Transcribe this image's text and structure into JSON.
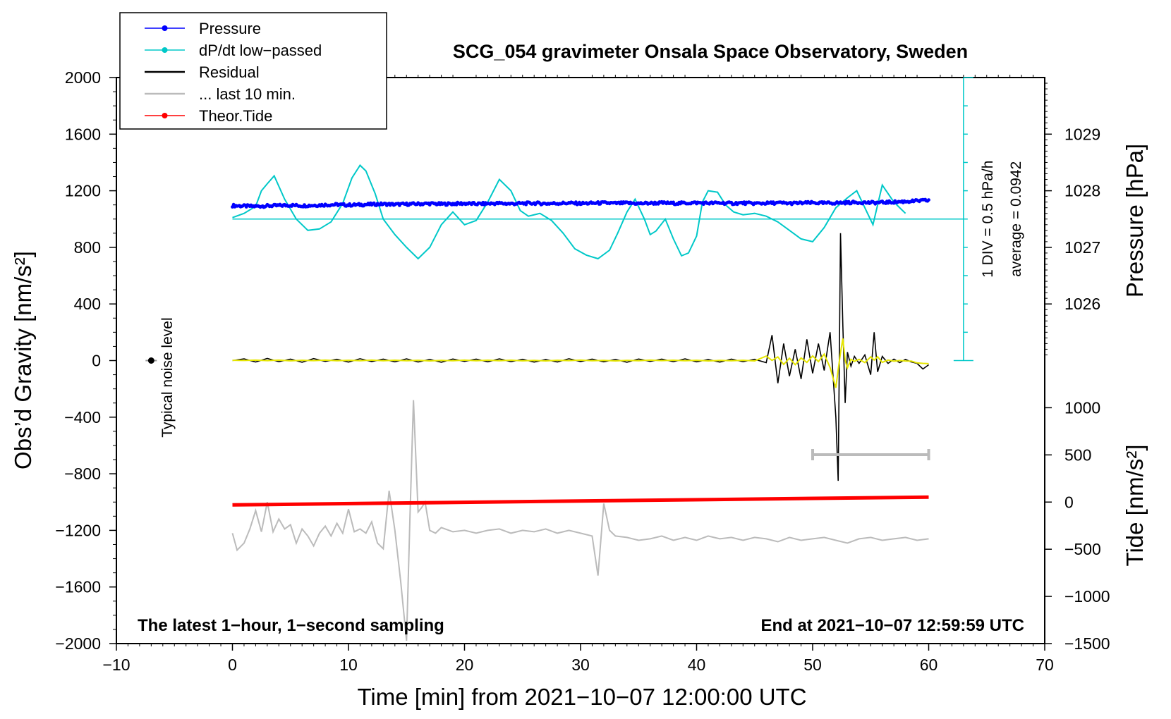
{
  "chart_data": {
    "type": "line",
    "title": "SCG_054 gravimeter Onsala Space Observatory, Sweden",
    "xlabel": "Time [min] from 2021−10−07 12:00:00 UTC",
    "ylabel_left": "Obs’d Gravity [nm/s²]",
    "ylabel_right_top": "Pressure [hPa]",
    "ylabel_right_bottom": "Tide [nm/s²]",
    "xlim": [
      -10,
      70
    ],
    "ylim": [
      -2000,
      2000
    ],
    "x_ticks": [
      {
        "v": -10,
        "label": "−10"
      },
      {
        "v": 0,
        "label": "0"
      },
      {
        "v": 10,
        "label": "10"
      },
      {
        "v": 20,
        "label": "20"
      },
      {
        "v": 30,
        "label": "30"
      },
      {
        "v": 40,
        "label": "40"
      },
      {
        "v": 50,
        "label": "50"
      },
      {
        "v": 60,
        "label": "60"
      },
      {
        "v": 70,
        "label": "70"
      }
    ],
    "y_ticks": [
      {
        "v": 2000,
        "label": "2000"
      },
      {
        "v": 1600,
        "label": "1600"
      },
      {
        "v": 1200,
        "label": "1200"
      },
      {
        "v": 800,
        "label": "800"
      },
      {
        "v": 400,
        "label": "400"
      },
      {
        "v": 0,
        "label": "0"
      },
      {
        "v": -400,
        "label": "−400"
      },
      {
        "v": -800,
        "label": "−800"
      },
      {
        "v": -1200,
        "label": "−1200"
      },
      {
        "v": -1600,
        "label": "−1600"
      },
      {
        "v": -2000,
        "label": "−2000"
      }
    ],
    "pressure_axis": {
      "hpa_per_gravity": 0.0025,
      "hpa_at_gravity_zero": 1025.0,
      "ticks": [
        {
          "v": 1029,
          "label": "1029"
        },
        {
          "v": 1028,
          "label": "1028"
        },
        {
          "v": 1027,
          "label": "1027"
        },
        {
          "v": 1026,
          "label": "1026"
        }
      ]
    },
    "tide_axis": {
      "tide_per_gravity": 1.5,
      "gravity_at_tide_zero": -1000,
      "ticks": [
        {
          "v": 1000,
          "label": "1000"
        },
        {
          "v": 500,
          "label": "500"
        },
        {
          "v": 0,
          "label": "0"
        },
        {
          "v": -500,
          "label": "−500"
        },
        {
          "v": -1000,
          "label": "−1000"
        },
        {
          "v": -1500,
          "label": "−1500"
        }
      ]
    },
    "legend": [
      {
        "label": "Pressure",
        "color": "#0000ff",
        "marker": true
      },
      {
        "label": "dP/dt low−passed",
        "color": "#00c8c8",
        "marker": true
      },
      {
        "label": "Residual",
        "color": "#000000",
        "marker": false
      },
      {
        "label": "... last 10 min.",
        "color": "#bbbbbb",
        "marker": false
      },
      {
        "label": "Theor.Tide",
        "color": "#ff0000",
        "marker": true
      }
    ],
    "dpdt_scale": {
      "label": "1 DIV = 0.5 hPa/h",
      "average_label": "average = 0.0942",
      "x_minutes": 63,
      "y_range": [
        0,
        2000
      ],
      "baseline_gravity": 1000,
      "divisions": 10
    },
    "noise_label": "Typical noise level",
    "noise_marker": {
      "x": -7,
      "y": 0,
      "err": 15
    },
    "bottom_left_note": "The latest 1−hour, 1−second sampling",
    "bottom_right_note": "End at 2021−10−07 12:59:59 UTC",
    "gray_bar": {
      "x_start": 50,
      "x_end": 60,
      "y": -665
    },
    "colors": {
      "pressure": "#0000ff",
      "dpdt": "#00c8c8",
      "residual": "#000000",
      "residual_smooth": "#e6e600",
      "last10": "#bbbbbb",
      "tide": "#ff0000"
    },
    "series": [
      {
        "name": "Pressure",
        "units": "gravity-scale",
        "x": [
          0,
          1,
          2,
          3,
          4,
          5,
          6,
          7,
          8,
          9,
          10,
          11,
          12,
          13,
          14,
          15,
          16,
          17,
          18,
          19,
          20,
          21,
          22,
          23,
          24,
          25,
          26,
          27,
          28,
          29,
          30,
          31,
          32,
          33,
          34,
          35,
          36,
          37,
          38,
          39,
          40,
          41,
          42,
          43,
          44,
          45,
          46,
          47,
          48,
          49,
          50,
          51,
          52,
          53,
          54,
          55,
          56,
          57,
          58,
          59,
          60
        ],
        "y": [
          1095,
          1092,
          1090,
          1093,
          1095,
          1098,
          1094,
          1097,
          1100,
          1102,
          1099,
          1101,
          1104,
          1106,
          1103,
          1105,
          1107,
          1109,
          1106,
          1108,
          1110,
          1107,
          1109,
          1111,
          1108,
          1110,
          1112,
          1109,
          1111,
          1113,
          1110,
          1112,
          1114,
          1111,
          1113,
          1110,
          1112,
          1114,
          1111,
          1113,
          1115,
          1112,
          1114,
          1111,
          1113,
          1110,
          1112,
          1114,
          1111,
          1113,
          1115,
          1112,
          1114,
          1116,
          1118,
          1115,
          1117,
          1120,
          1124,
          1128,
          1132
        ]
      },
      {
        "name": "dP/dt low-passed",
        "units": "gravity-scale",
        "x": [
          0,
          1,
          2,
          2.5,
          3,
          3.6,
          4.5,
          5.5,
          6.5,
          7.5,
          8.5,
          9.5,
          10.3,
          11,
          11.5,
          12.3,
          13,
          14,
          15,
          16,
          17,
          18,
          19,
          20,
          21,
          22,
          23,
          24,
          24.8,
          25.5,
          26.5,
          27.5,
          28.5,
          29.5,
          30.5,
          31.5,
          32.5,
          33.2,
          34,
          34.7,
          35.5,
          36,
          36.5,
          37.3,
          38,
          38.7,
          39.3,
          40,
          40.5,
          41,
          41.8,
          42.5,
          43.2,
          44,
          45,
          46,
          47,
          48,
          49,
          50,
          51,
          52,
          53,
          53.8,
          54.5,
          55.2,
          56,
          57,
          58
        ],
        "y": [
          1010,
          1040,
          1090,
          1200,
          1250,
          1305,
          1140,
          1000,
          920,
          930,
          980,
          1110,
          1290,
          1380,
          1340,
          1180,
          1000,
          890,
          800,
          720,
          800,
          960,
          1050,
          960,
          990,
          1120,
          1280,
          1200,
          1060,
          1020,
          1040,
          990,
          900,
          790,
          745,
          720,
          780,
          900,
          1050,
          1140,
          1000,
          890,
          915,
          1000,
          860,
          740,
          760,
          880,
          1120,
          1200,
          1190,
          1100,
          1050,
          1030,
          1040,
          1020,
          980,
          920,
          860,
          840,
          940,
          1080,
          1150,
          1200,
          1080,
          960,
          1240,
          1120,
          1040
        ]
      },
      {
        "name": "Residual",
        "units": "nm/s2",
        "x": [
          0,
          1,
          2,
          3,
          4,
          5,
          6,
          7,
          8,
          9,
          10,
          11,
          12,
          13,
          14,
          15,
          16,
          17,
          18,
          19,
          20,
          21,
          22,
          23,
          24,
          25,
          26,
          27,
          28,
          29,
          30,
          31,
          32,
          33,
          34,
          35,
          36,
          37,
          38,
          39,
          40,
          41,
          42,
          43,
          44,
          45,
          46,
          46.5,
          47,
          47.5,
          48,
          48.5,
          49,
          49.5,
          50,
          50.5,
          51,
          51.5,
          52,
          52.2,
          52.4,
          52.6,
          52.8,
          53,
          53.3,
          53.6,
          54,
          54.5,
          55,
          55.3,
          55.6,
          56,
          56.5,
          57,
          57.5,
          58,
          58.5,
          59,
          59.5,
          60
        ],
        "y": [
          0,
          12,
          -10,
          15,
          -8,
          10,
          -12,
          14,
          -6,
          9,
          -11,
          13,
          -7,
          10,
          -9,
          12,
          -10,
          8,
          -12,
          11,
          -6,
          10,
          -9,
          12,
          -8,
          9,
          -11,
          7,
          -10,
          13,
          -7,
          10,
          -9,
          8,
          -12,
          11,
          -6,
          10,
          -8,
          12,
          -9,
          7,
          -11,
          10,
          -8,
          9,
          -15,
          180,
          -160,
          120,
          -110,
          80,
          -130,
          150,
          -90,
          120,
          -70,
          200,
          -400,
          -850,
          900,
          250,
          -300,
          60,
          -40,
          30,
          -20,
          40,
          -100,
          200,
          -80,
          30,
          -20,
          10,
          -15,
          8,
          -10,
          -20,
          -60,
          -30
        ]
      },
      {
        "name": "... last 10 min.",
        "units": "gravity-scale",
        "x": [
          0,
          0.4,
          1,
          1.5,
          2,
          2.5,
          3,
          3.5,
          4,
          4.5,
          5,
          5.5,
          6,
          6.5,
          7,
          7.5,
          8,
          8.5,
          9,
          9.5,
          10,
          10.5,
          11,
          11.5,
          12,
          12.5,
          13,
          13.5,
          14,
          14.5,
          15,
          15.3,
          15.6,
          16,
          16.3,
          16.6,
          17,
          17.5,
          18,
          19,
          20,
          21,
          22,
          23,
          24,
          25,
          26,
          27,
          28,
          29,
          30,
          31,
          31.5,
          32,
          32.5,
          33,
          34,
          35,
          36,
          37,
          38,
          39,
          40,
          41,
          42,
          43,
          44,
          45,
          46,
          47,
          48,
          49,
          50,
          51,
          52,
          53,
          54,
          55,
          56,
          57,
          58,
          59,
          60
        ],
        "y": [
          -1220,
          -1340,
          -1290,
          -1190,
          -1060,
          -1210,
          -1000,
          -1210,
          -1120,
          -1190,
          -1160,
          -1290,
          -1190,
          -1240,
          -1310,
          -1220,
          -1170,
          -1240,
          -1150,
          -1220,
          -1050,
          -1210,
          -1190,
          -1220,
          -1140,
          -1290,
          -1330,
          -920,
          -1200,
          -1560,
          -1980,
          -1100,
          -280,
          -1070,
          -1040,
          -1000,
          -1200,
          -1220,
          -1180,
          -1210,
          -1200,
          -1220,
          -1200,
          -1190,
          -1220,
          -1200,
          -1210,
          -1190,
          -1220,
          -1200,
          -1220,
          -1240,
          -1520,
          -1010,
          -1200,
          -1240,
          -1250,
          -1270,
          -1260,
          -1240,
          -1270,
          -1250,
          -1270,
          -1240,
          -1260,
          -1250,
          -1270,
          -1250,
          -1260,
          -1280,
          -1250,
          -1270,
          -1260,
          -1250,
          -1270,
          -1290,
          -1260,
          -1250,
          -1270,
          -1260,
          -1250,
          -1270,
          -1260
        ]
      },
      {
        "name": "Theor.Tide",
        "units": "gravity-scale",
        "x": [
          0,
          60
        ],
        "y": [
          -1020,
          -965
        ]
      }
    ]
  }
}
